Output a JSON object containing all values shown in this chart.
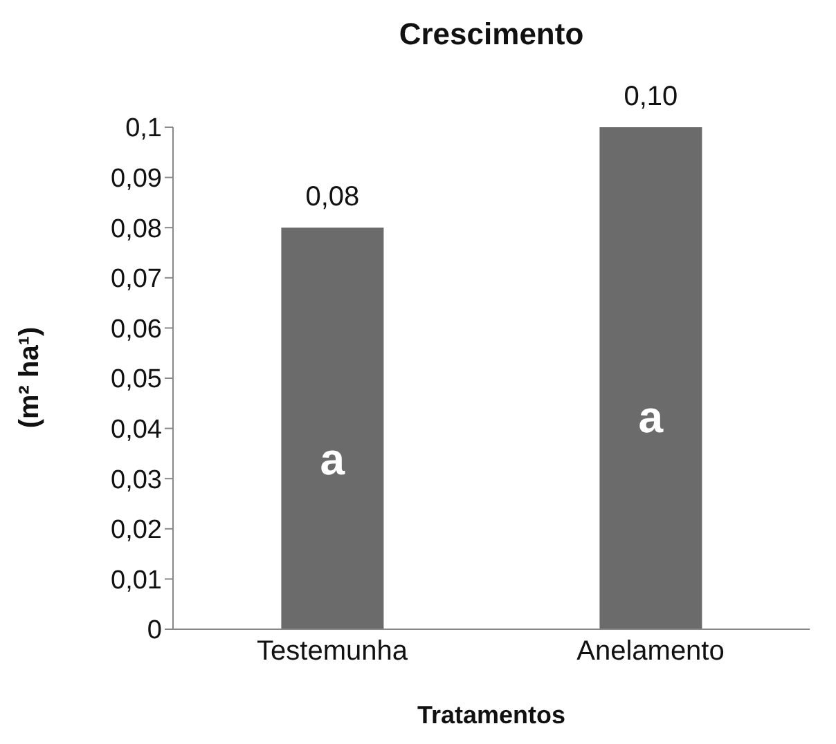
{
  "chart_data": {
    "type": "bar",
    "title": "Crescimento",
    "xlabel": "Tratamentos",
    "ylabel": "(m² ha¹)",
    "categories": [
      "Testemunha",
      "Anelamento"
    ],
    "values": [
      0.08,
      0.1
    ],
    "color": "#6b6b6b",
    "value_labels": [
      "0,08",
      "0,10"
    ],
    "ylim": [
      0,
      0.1
    ],
    "yticks": [
      0,
      {
        "value": 0.01,
        "label": "0,01"
      },
      {
        "value": 0.02,
        "label": "0,02"
      },
      {
        "value": 0.03,
        "label": "0,03"
      },
      {
        "value": 0.04,
        "label": "0,04"
      },
      {
        "value": 0.05,
        "label": "0,05"
      },
      {
        "value": 0.06,
        "label": "0,06"
      },
      {
        "value": 0.07,
        "label": "0,07"
      },
      {
        "value": 0.08,
        "label": "0,08"
      },
      {
        "value": 0.09,
        "label": "0,09"
      },
      {
        "value": 0.1,
        "label": "0,1"
      }
    ],
    "annotations": [
      "a",
      "a"
    ],
    "grid": false,
    "legend": false
  }
}
